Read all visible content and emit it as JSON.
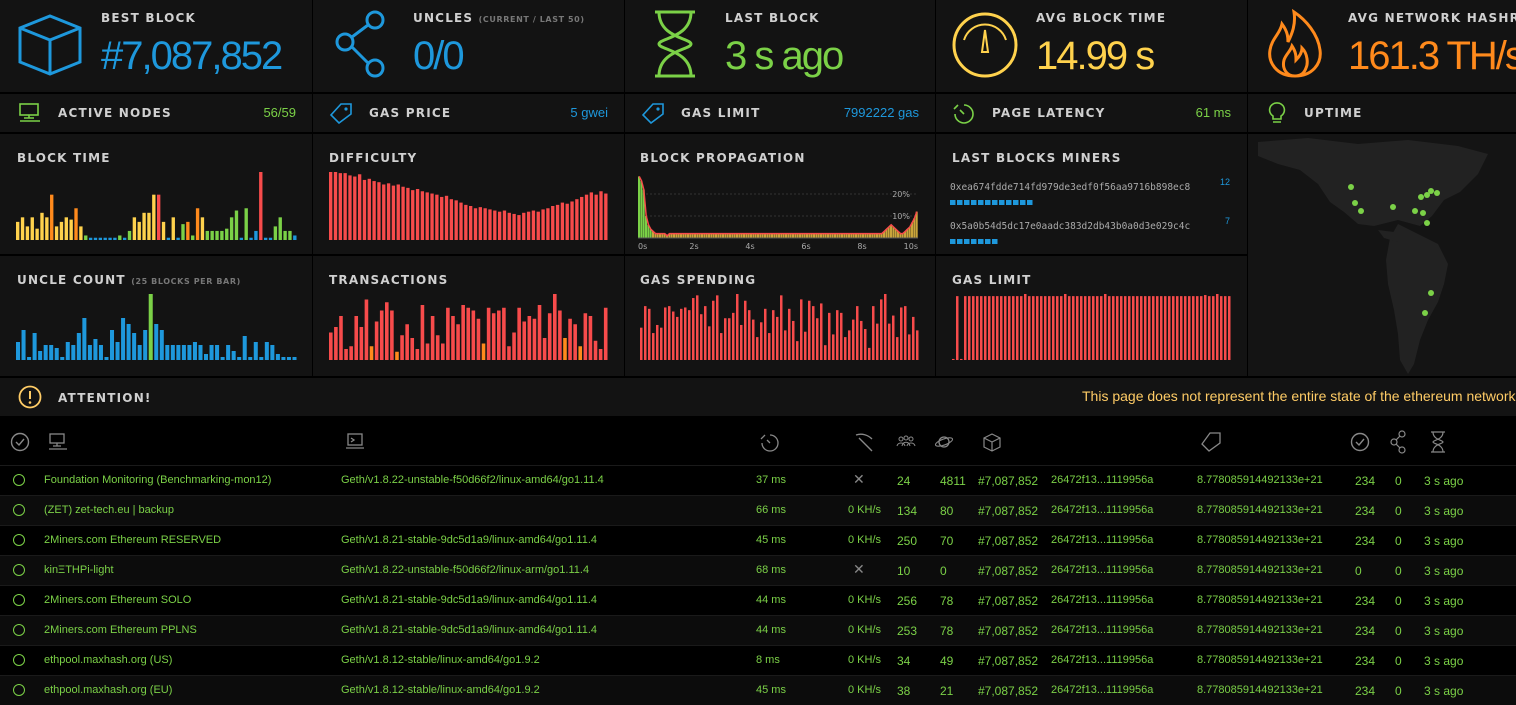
{
  "stats": [
    {
      "label": "Best Block",
      "value": "#7,087,852",
      "color": "#1e98dc",
      "icon": "cube-icon"
    },
    {
      "label": "Uncles",
      "sub": "(current / last 50)",
      "value": "0/0",
      "color": "#1e98dc",
      "icon": "uncles-icon"
    },
    {
      "label": "Last Block",
      "value": "3 s ago",
      "color": "#7bd147",
      "icon": "hourglass-icon"
    },
    {
      "label": "Avg Block Time",
      "value": "14.99 s",
      "color": "#ffd24d",
      "icon": "gauge-icon"
    },
    {
      "label": "Avg Network Hashrate",
      "value": "161.3 TH/s",
      "color": "#ff8a1c",
      "icon": "fire-icon"
    }
  ],
  "small_stats": [
    {
      "label": "Active Nodes",
      "value": "56/59",
      "color": "#7bd147",
      "icon": "nodes-icon"
    },
    {
      "label": "Gas Price",
      "value": "5 gwei",
      "color": "#1e98dc",
      "icon": "gas-tag-icon"
    },
    {
      "label": "Gas Limit",
      "value": "7992222 gas",
      "color": "#1e98dc",
      "icon": "gas-tag-icon"
    },
    {
      "label": "Page Latency",
      "value": "61 ms",
      "color": "#7bd147",
      "icon": "timer-icon"
    },
    {
      "label": "Uptime",
      "value": "",
      "color": "#7bd147",
      "icon": "bulb-icon"
    }
  ],
  "charts": {
    "block_time": {
      "label": "Block Time"
    },
    "difficulty": {
      "label": "Difficulty"
    },
    "block_propagation": {
      "label": "Block Propagation",
      "yticks": [
        "20%",
        "10%"
      ],
      "xticks": [
        "0s",
        "2s",
        "4s",
        "6s",
        "8s",
        "10s"
      ]
    },
    "last_blocks_miners": {
      "label": "Last Blocks Miners",
      "miners": [
        {
          "address": "0xea674fdde714fd979de3edf0f56aa9716b898ec8",
          "count": "12",
          "blocks": 12
        },
        {
          "address": "0x5a0b54d5dc17e0aadc383d2db43b0a0d3e029c4c",
          "count": "7",
          "blocks": 7
        }
      ]
    },
    "uncle_count": {
      "label": "Uncle Count",
      "sub": "(25 blocks per bar)"
    },
    "transactions": {
      "label": "Transactions"
    },
    "gas_spending": {
      "label": "Gas Spending"
    },
    "gas_limit": {
      "label": "Gas Limit"
    }
  },
  "chart_data": [
    {
      "type": "bar",
      "name": "block_time",
      "values": [
        8,
        10,
        6,
        10,
        5,
        12,
        10,
        20,
        6,
        8,
        10,
        9,
        14,
        6,
        2,
        1,
        1,
        1,
        1,
        1,
        1,
        2,
        1,
        4,
        10,
        8,
        12,
        12,
        20,
        20,
        8,
        1,
        10,
        1,
        7,
        8,
        2,
        14,
        10,
        4,
        4,
        4,
        4,
        5,
        10,
        13,
        1,
        14,
        1,
        4,
        30,
        1,
        1,
        6,
        10,
        4,
        4,
        2
      ],
      "colors": [
        "#ffd24d",
        "#ffd24d",
        "#ffd24d",
        "#ffd24d",
        "#ffd24d",
        "#ffd24d",
        "#ffd24d",
        "#ff8a1c",
        "#ffd24d",
        "#ffd24d",
        "#ffd24d",
        "#ffd24d",
        "#ff8a1c",
        "#ffd24d",
        "#7bd147",
        "#1e98dc",
        "#1e98dc",
        "#1e98dc",
        "#1e98dc",
        "#1e98dc",
        "#1e98dc",
        "#7bd147",
        "#1e98dc",
        "#7bd147",
        "#ffd24d",
        "#ffd24d",
        "#ffd24d",
        "#ffd24d",
        "#ffd24d",
        "#f74b4b",
        "#ffd24d",
        "#1e98dc",
        "#ffd24d",
        "#1e98dc",
        "#7bd147",
        "#ff8a1c",
        "#7bd147",
        "#ff8a1c",
        "#ffd24d",
        "#7bd147",
        "#7bd147",
        "#7bd147",
        "#7bd147",
        "#7bd147",
        "#7bd147",
        "#7bd147",
        "#1e98dc",
        "#7bd147",
        "#1e98dc",
        "#1e98dc",
        "#f74b4b",
        "#1e98dc",
        "#1e98dc",
        "#7bd147",
        "#7bd147",
        "#7bd147",
        "#7bd147",
        "#1e98dc"
      ]
    },
    {
      "type": "bar",
      "name": "difficulty",
      "values": [
        60,
        60,
        59,
        59,
        57,
        56,
        58,
        53,
        54,
        52,
        51,
        49,
        50,
        48,
        49,
        47,
        46,
        44,
        45,
        43,
        42,
        41,
        40,
        38,
        39,
        36,
        35,
        33,
        31,
        30,
        28,
        29,
        28,
        27,
        26,
        25,
        26,
        24,
        23,
        22,
        24,
        25,
        26,
        25,
        27,
        28,
        30,
        31,
        33,
        32,
        34,
        36,
        38,
        40,
        42,
        40,
        43,
        41
      ],
      "color": "#f74b4b"
    },
    {
      "type": "bar",
      "name": "uncle_count",
      "values": [
        6,
        10,
        1,
        9,
        3,
        5,
        5,
        4,
        1,
        6,
        5,
        9,
        14,
        5,
        7,
        5,
        1,
        10,
        6,
        14,
        12,
        9,
        5,
        10,
        22,
        12,
        10,
        5,
        5,
        5,
        5,
        5,
        6,
        5,
        2,
        5,
        5,
        1,
        5,
        3,
        1,
        8,
        1,
        6,
        1,
        6,
        5,
        2,
        1,
        1,
        1
      ],
      "colors": [
        "#1e98dc",
        "#1e98dc",
        "#1e98dc",
        "#1e98dc",
        "#1e98dc",
        "#1e98dc",
        "#1e98dc",
        "#1e98dc",
        "#1e98dc",
        "#1e98dc",
        "#1e98dc",
        "#1e98dc",
        "#1e98dc",
        "#1e98dc",
        "#1e98dc",
        "#1e98dc",
        "#1e98dc",
        "#1e98dc",
        "#1e98dc",
        "#1e98dc",
        "#1e98dc",
        "#1e98dc",
        "#1e98dc",
        "#1e98dc",
        "#7bd147",
        "#1e98dc",
        "#1e98dc",
        "#1e98dc",
        "#1e98dc",
        "#1e98dc",
        "#1e98dc",
        "#1e98dc",
        "#1e98dc",
        "#1e98dc",
        "#1e98dc",
        "#1e98dc",
        "#1e98dc",
        "#1e98dc",
        "#1e98dc",
        "#1e98dc",
        "#1e98dc",
        "#1e98dc",
        "#1e98dc",
        "#1e98dc",
        "#1e98dc",
        "#1e98dc",
        "#1e98dc",
        "#1e98dc",
        "#1e98dc",
        "#1e98dc",
        "#1e98dc"
      ]
    },
    {
      "type": "bar",
      "name": "transactions",
      "values": [
        10,
        12,
        16,
        4,
        5,
        16,
        12,
        22,
        5,
        14,
        18,
        21,
        18,
        3,
        9,
        13,
        8,
        4,
        20,
        6,
        16,
        9,
        6,
        19,
        16,
        13,
        20,
        19,
        18,
        15,
        6,
        19,
        17,
        18,
        19,
        5,
        10,
        19,
        14,
        16,
        15,
        20,
        8,
        17,
        24,
        18,
        8,
        15,
        13,
        5,
        17,
        16,
        7,
        4,
        19
      ],
      "colors": [
        "#f74b4b",
        "#f74b4b",
        "#f74b4b",
        "#f74b4b",
        "#f74b4b",
        "#f74b4b",
        "#f74b4b",
        "#f74b4b",
        "#ff8a1c",
        "#f74b4b",
        "#f74b4b",
        "#f74b4b",
        "#f74b4b",
        "#ff8a1c",
        "#f74b4b",
        "#f74b4b",
        "#f74b4b",
        "#f74b4b",
        "#f74b4b",
        "#f74b4b",
        "#f74b4b",
        "#f74b4b",
        "#f74b4b",
        "#f74b4b",
        "#f74b4b",
        "#f74b4b",
        "#f74b4b",
        "#f74b4b",
        "#f74b4b",
        "#f74b4b",
        "#ff8a1c",
        "#f74b4b",
        "#f74b4b",
        "#f74b4b",
        "#f74b4b",
        "#f74b4b",
        "#f74b4b",
        "#f74b4b",
        "#f74b4b",
        "#f74b4b",
        "#f74b4b",
        "#f74b4b",
        "#f74b4b",
        "#f74b4b",
        "#f74b4b",
        "#f74b4b",
        "#ff8a1c",
        "#f74b4b",
        "#f74b4b",
        "#ff8a1c",
        "#f74b4b",
        "#f74b4b",
        "#f74b4b",
        "#f74b4b",
        "#f74b4b"
      ]
    },
    {
      "type": "bar",
      "name": "gas_spending",
      "values": [
        24,
        40,
        38,
        20,
        26,
        24,
        39,
        40,
        36,
        32,
        38,
        39,
        37,
        46,
        48,
        34,
        40,
        25,
        44,
        48,
        20,
        31,
        31,
        35,
        49,
        26,
        44,
        37,
        30,
        17,
        28,
        38,
        20,
        37,
        32,
        48,
        22,
        38,
        29,
        14,
        45,
        21,
        44,
        40,
        31,
        42,
        11,
        35,
        19,
        37,
        35,
        17,
        22,
        30,
        40,
        29,
        23,
        9,
        40,
        27,
        45,
        49,
        27,
        33,
        17,
        39,
        40,
        19,
        32,
        22
      ],
      "color": "#f74b4b"
    },
    {
      "type": "bar",
      "name": "gas_limit",
      "values": [
        1,
        60,
        1,
        60,
        60,
        60,
        60,
        60,
        60,
        60,
        60,
        60,
        60,
        60,
        60,
        60,
        60,
        60,
        62,
        60,
        60,
        60,
        60,
        60,
        60,
        60,
        60,
        60,
        62,
        60,
        60,
        60,
        60,
        60,
        60,
        60,
        60,
        60,
        62,
        60,
        60,
        60,
        60,
        60,
        60,
        60,
        60,
        60,
        60,
        60,
        60,
        60,
        60,
        60,
        60,
        60,
        60,
        60,
        60,
        60,
        60,
        60,
        60,
        61,
        60,
        60,
        62,
        60,
        60,
        60
      ],
      "color": "#f74b4b"
    },
    {
      "type": "area",
      "name": "block_propagation",
      "x_unit": "s",
      "xlim": [
        0,
        10
      ],
      "ylim": [
        0,
        30
      ],
      "histogram": [
        28,
        26,
        22,
        10,
        6,
        4,
        3,
        2,
        2,
        2,
        2,
        2,
        1,
        2,
        2,
        2,
        2,
        2,
        2,
        2,
        2,
        2,
        2,
        2,
        2,
        2,
        2,
        2,
        2,
        2,
        2,
        2,
        2,
        2,
        2,
        2,
        2,
        2,
        2,
        2,
        2,
        2,
        2,
        2,
        2,
        2,
        2,
        2,
        2,
        2,
        2,
        2,
        2,
        2,
        2,
        2,
        2,
        2,
        2,
        2,
        2,
        2,
        2,
        2,
        2,
        2,
        2,
        2,
        2,
        2,
        2,
        2,
        2,
        2,
        2,
        2,
        2,
        2,
        2,
        2,
        2,
        2,
        2,
        2,
        2,
        2,
        2,
        2,
        2,
        2,
        2,
        2,
        2,
        2,
        2,
        2,
        2,
        2,
        2,
        2,
        2,
        2,
        2,
        2,
        2,
        3,
        4,
        5,
        6,
        5,
        4,
        3,
        2,
        2,
        3,
        4,
        5,
        7,
        9,
        12
      ],
      "cdf_color": "#f74b4b"
    }
  ],
  "attention": {
    "label": "Attention!",
    "text": "This page does not represent the entire state of the ethereum network"
  },
  "table": {
    "header_icons": [
      "check-icon",
      "node-icon",
      "terminal-icon",
      "latency-icon",
      "pickaxe-icon",
      "peers-icon",
      "planet-icon",
      "block-icon",
      "hash-icon",
      "difficulty-tag-icon",
      "propagation-icon",
      "uncles-icon",
      "hourglass-icon"
    ],
    "rows": [
      {
        "name": "Foundation Monitoring (Benchmarking-mon12)",
        "client": "Geth/v1.8.22-unstable-f50d66f2/linux-amd64/go1.11.4",
        "latency": "37 ms",
        "hashrate": "✕",
        "peers": "24",
        "pending": "4811",
        "block": "#7,087,852",
        "hash": "26472f13...1119956a",
        "difficulty": "8.778085914492133e+21",
        "txs": "234",
        "uncles": "0",
        "last": "3 s ago"
      },
      {
        "name": "(ZET) zet-tech.eu | backup",
        "client": "",
        "latency": "66 ms",
        "hashrate": "0 KH/s",
        "peers": "134",
        "pending": "80",
        "block": "#7,087,852",
        "hash": "26472f13...1119956a",
        "difficulty": "8.778085914492133e+21",
        "txs": "234",
        "uncles": "0",
        "last": "3 s ago"
      },
      {
        "name": "2Miners.com Ethereum RESERVED",
        "client": "Geth/v1.8.21-stable-9dc5d1a9/linux-amd64/go1.11.4",
        "latency": "45 ms",
        "hashrate": "0 KH/s",
        "peers": "250",
        "pending": "70",
        "block": "#7,087,852",
        "hash": "26472f13...1119956a",
        "difficulty": "8.778085914492133e+21",
        "txs": "234",
        "uncles": "0",
        "last": "3 s ago"
      },
      {
        "name": "kinΞTHPi-light",
        "client": "Geth/v1.8.22-unstable-f50d66f2/linux-arm/go1.11.4",
        "latency": "68 ms",
        "hashrate": "✕",
        "peers": "10",
        "pending": "0",
        "block": "#7,087,852",
        "hash": "26472f13...1119956a",
        "difficulty": "8.778085914492133e+21",
        "txs": "0",
        "uncles": "0",
        "last": "3 s ago"
      },
      {
        "name": "2Miners.com Ethereum SOLO",
        "client": "Geth/v1.8.21-stable-9dc5d1a9/linux-amd64/go1.11.4",
        "latency": "44 ms",
        "hashrate": "0 KH/s",
        "peers": "256",
        "pending": "78",
        "block": "#7,087,852",
        "hash": "26472f13...1119956a",
        "difficulty": "8.778085914492133e+21",
        "txs": "234",
        "uncles": "0",
        "last": "3 s ago"
      },
      {
        "name": "2Miners.com Ethereum PPLNS",
        "client": "Geth/v1.8.21-stable-9dc5d1a9/linux-amd64/go1.11.4",
        "latency": "44 ms",
        "hashrate": "0 KH/s",
        "peers": "253",
        "pending": "78",
        "block": "#7,087,852",
        "hash": "26472f13...1119956a",
        "difficulty": "8.778085914492133e+21",
        "txs": "234",
        "uncles": "0",
        "last": "3 s ago"
      },
      {
        "name": "ethpool.maxhash.org (US)",
        "client": "Geth/v1.8.12-stable/linux-amd64/go1.9.2",
        "latency": "8 ms",
        "hashrate": "0 KH/s",
        "peers": "34",
        "pending": "49",
        "block": "#7,087,852",
        "hash": "26472f13...1119956a",
        "difficulty": "8.778085914492133e+21",
        "txs": "234",
        "uncles": "0",
        "last": "3 s ago"
      },
      {
        "name": "ethpool.maxhash.org (EU)",
        "client": "Geth/v1.8.12-stable/linux-amd64/go1.9.2",
        "latency": "45 ms",
        "hashrate": "0 KH/s",
        "peers": "38",
        "pending": "21",
        "block": "#7,087,852",
        "hash": "26472f13...1119956a",
        "difficulty": "8.778085914492133e+21",
        "txs": "234",
        "uncles": "0",
        "last": "3 s ago"
      }
    ]
  }
}
